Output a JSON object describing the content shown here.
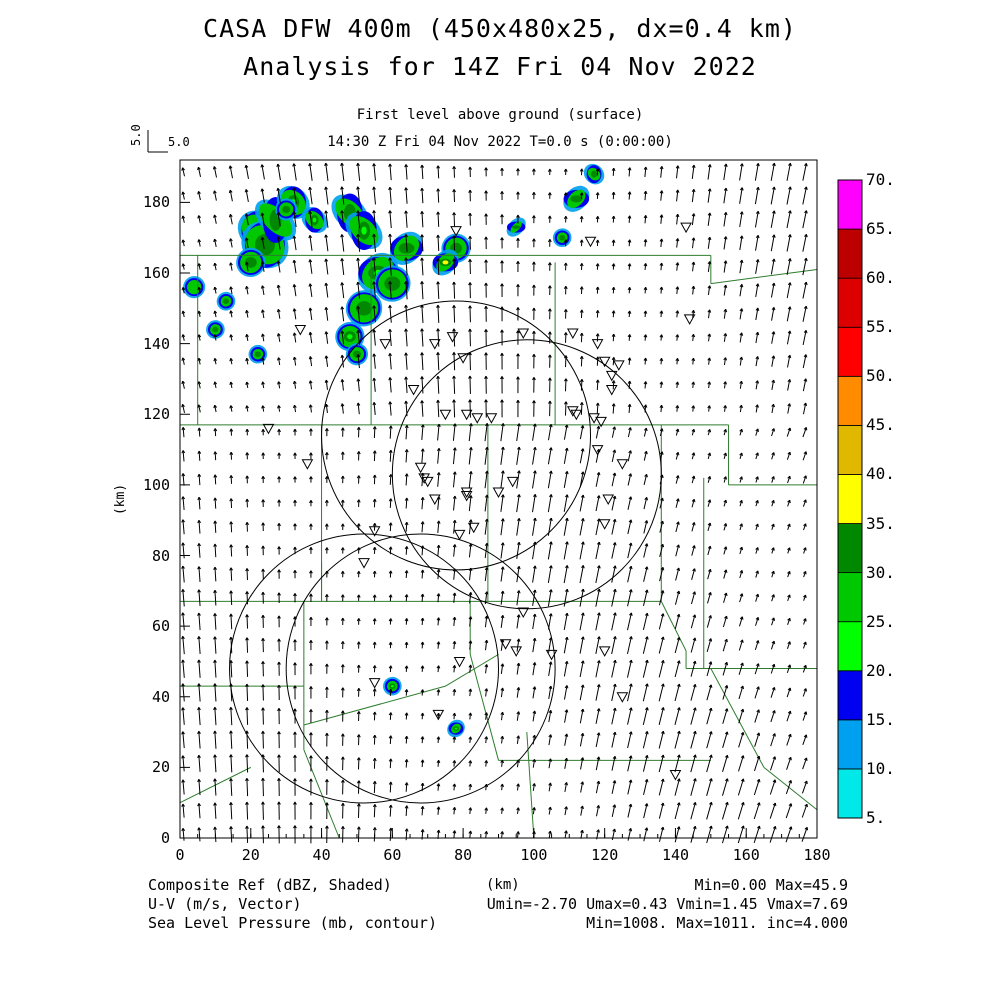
{
  "title": {
    "line1": "CASA DFW 400m (450x480x25, dx=0.4 km)",
    "line2": "Analysis for 14Z Fri 04 Nov 2022"
  },
  "subtitle": {
    "level": "First level above ground (surface)",
    "time": "14:30 Z Fri 04 Nov 2022    T=0.0 s (0:00:00)"
  },
  "vector_ref": {
    "value_vertical": "5.0",
    "value_horizontal": "5.0"
  },
  "axes": {
    "x_label": "(km)",
    "y_label": "(km)",
    "x_range": [
      0,
      180
    ],
    "y_range": [
      0,
      192
    ],
    "x_ticks": [
      "0",
      "20",
      "40",
      "60",
      "80",
      "100",
      "120",
      "140",
      "160",
      "180"
    ],
    "y_ticks": [
      "0",
      "20",
      "40",
      "60",
      "80",
      "100",
      "120",
      "140",
      "160",
      "180"
    ]
  },
  "colorbar": {
    "labels": [
      "5.",
      "10.",
      "15.",
      "20.",
      "25.",
      "30.",
      "35.",
      "40.",
      "45.",
      "50.",
      "55.",
      "60.",
      "65.",
      "70."
    ],
    "colors": [
      "#00e8e8",
      "#00a0f0",
      "#0000f0",
      "#00ff00",
      "#00c800",
      "#008800",
      "#ffff00",
      "#e0b800",
      "#ff8c00",
      "#ff0000",
      "#dc0000",
      "#bc0000",
      "#ff00ff",
      "#ffffff"
    ]
  },
  "footer": {
    "left1": "Composite Ref (dBZ, Shaded)",
    "left2": "U-V (m/s, Vector)",
    "left3": "Sea Level Pressure (mb, contour)",
    "center": "(km)",
    "right1": "Min=0.00 Max=45.9",
    "right2": "Umin=-2.70 Umax=0.43 Vmin=1.45 Vmax=7.69",
    "right3": "Min=1008. Max=1011. inc=4.000"
  },
  "radar_sites": [
    {
      "x": 78,
      "y": 114,
      "r": 38
    },
    {
      "x": 98,
      "y": 103,
      "r": 38
    },
    {
      "x": 68,
      "y": 48,
      "r": 38
    },
    {
      "x": 52,
      "y": 48,
      "r": 38
    }
  ],
  "radar_site_note": "radar range rings",
  "colors": {
    "county_lines": "#2e7d2e",
    "vectors": "#000000",
    "frame": "#000000"
  }
}
